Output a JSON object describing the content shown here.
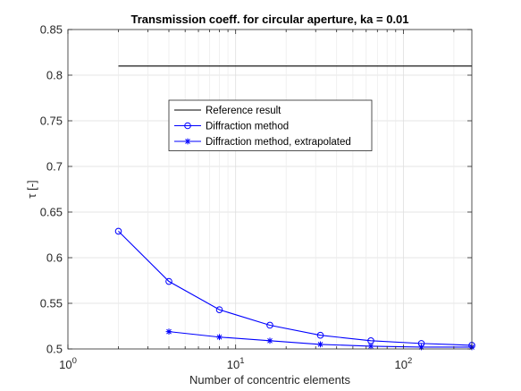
{
  "chart_data": {
    "type": "line",
    "title": "Transmission coeff. for circular aperture, ka = 0.01",
    "xlabel": "Number of concentric elements",
    "ylabel": "τ  [-]",
    "xscale": "log",
    "xlim": [
      1,
      256
    ],
    "ylim": [
      0.5,
      0.85
    ],
    "xticks": [
      {
        "value": 1,
        "base": "10",
        "exp": "0"
      },
      {
        "value": 10,
        "base": "10",
        "exp": "1"
      },
      {
        "value": 100,
        "base": "10",
        "exp": "2"
      }
    ],
    "yticks": [
      {
        "value": 0.5,
        "label": "0.5"
      },
      {
        "value": 0.55,
        "label": "0.55"
      },
      {
        "value": 0.6,
        "label": "0.6"
      },
      {
        "value": 0.65,
        "label": "0.65"
      },
      {
        "value": 0.7,
        "label": "0.7"
      },
      {
        "value": 0.75,
        "label": "0.75"
      },
      {
        "value": 0.8,
        "label": "0.8"
      },
      {
        "value": 0.85,
        "label": "0.85"
      }
    ],
    "grid": true,
    "legend_position": "upper-center",
    "series": [
      {
        "name": "Reference result",
        "color": "#000000",
        "marker": "none",
        "x": [
          2,
          256
        ],
        "y": [
          0.81,
          0.81
        ]
      },
      {
        "name": "Diffraction method",
        "color": "#0000ff",
        "marker": "circle",
        "x": [
          2,
          4,
          8,
          16,
          32,
          64,
          128,
          256
        ],
        "y": [
          0.629,
          0.574,
          0.543,
          0.526,
          0.515,
          0.509,
          0.506,
          0.504
        ]
      },
      {
        "name": "Diffraction method, extrapolated",
        "color": "#0000ff",
        "marker": "asterisk",
        "x": [
          4,
          8,
          16,
          32,
          64,
          128,
          256
        ],
        "y": [
          0.519,
          0.513,
          0.509,
          0.505,
          0.503,
          0.502,
          0.502
        ]
      }
    ]
  }
}
